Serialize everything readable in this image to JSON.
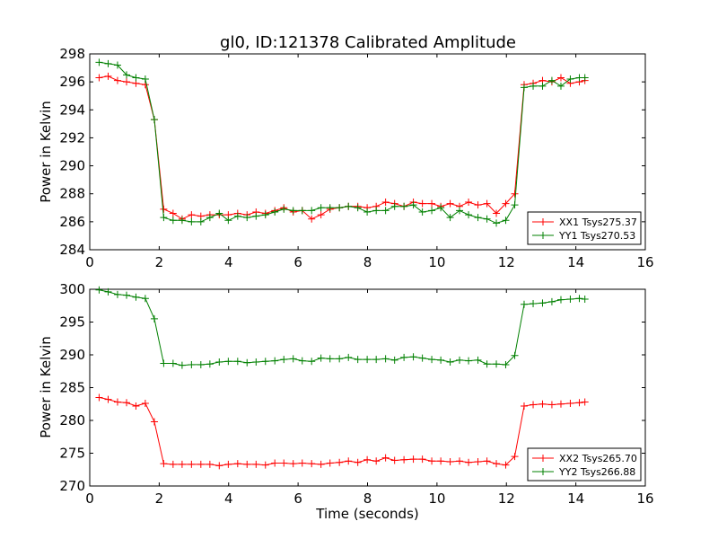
{
  "chart_data": [
    {
      "type": "line",
      "title": "gl0, ID:121378 Calibrated Amplitude",
      "xlabel": "",
      "ylabel": "Power in Kelvin",
      "xlim": [
        0,
        16
      ],
      "ylim": [
        284,
        298
      ],
      "xticks": [
        0,
        2,
        4,
        6,
        8,
        10,
        12,
        14,
        16
      ],
      "yticks": [
        284,
        286,
        288,
        290,
        292,
        294,
        296,
        298
      ],
      "grid": false,
      "legend_position": "lower-right",
      "x": [
        0.27,
        0.53,
        0.8,
        1.06,
        1.33,
        1.6,
        1.86,
        2.13,
        2.4,
        2.66,
        2.93,
        3.2,
        3.46,
        3.73,
        3.99,
        4.26,
        4.53,
        4.79,
        5.06,
        5.33,
        5.59,
        5.86,
        6.12,
        6.39,
        6.66,
        6.92,
        7.19,
        7.45,
        7.72,
        7.99,
        8.25,
        8.52,
        8.78,
        9.05,
        9.32,
        9.58,
        9.85,
        10.11,
        10.38,
        10.65,
        10.91,
        11.18,
        11.44,
        11.71,
        11.98,
        12.24,
        12.51,
        12.77,
        13.04,
        13.31,
        13.57,
        13.84,
        14.1,
        14.26
      ],
      "series": [
        {
          "name": "XX1 Tsys275.37",
          "color": "#ff0000",
          "values": [
            296.3,
            296.4,
            296.1,
            296.0,
            295.9,
            295.8,
            293.3,
            286.9,
            286.6,
            286.2,
            286.5,
            286.4,
            286.5,
            286.5,
            286.5,
            286.6,
            286.5,
            286.7,
            286.6,
            286.8,
            287.0,
            286.7,
            286.8,
            286.2,
            286.5,
            286.9,
            287.0,
            287.1,
            287.1,
            287.0,
            287.1,
            287.4,
            287.3,
            287.1,
            287.4,
            287.3,
            287.3,
            287.1,
            287.3,
            287.1,
            287.4,
            287.2,
            287.3,
            286.6,
            287.3,
            288.0,
            295.8,
            295.9,
            296.1,
            296.0,
            296.3,
            295.9,
            296.0,
            296.1
          ]
        },
        {
          "name": "YY1 Tsys270.53",
          "color": "#008000",
          "values": [
            297.4,
            297.3,
            297.2,
            296.5,
            296.3,
            296.2,
            293.3,
            286.3,
            286.1,
            286.1,
            286.0,
            286.0,
            286.3,
            286.6,
            286.1,
            286.4,
            286.3,
            286.4,
            286.5,
            286.7,
            286.9,
            286.8,
            286.8,
            286.8,
            287.0,
            287.0,
            287.0,
            287.1,
            287.0,
            286.7,
            286.8,
            286.8,
            287.1,
            287.1,
            287.2,
            286.7,
            286.8,
            287.0,
            286.3,
            286.8,
            286.5,
            286.3,
            286.2,
            285.9,
            286.1,
            287.2,
            295.6,
            295.7,
            295.7,
            296.1,
            295.7,
            296.2,
            296.3,
            296.3
          ]
        }
      ]
    },
    {
      "type": "line",
      "title": "",
      "xlabel": "Time (seconds)",
      "ylabel": "Power in Kelvin",
      "xlim": [
        0,
        16
      ],
      "ylim": [
        270,
        300
      ],
      "xticks": [
        0,
        2,
        4,
        6,
        8,
        10,
        12,
        14,
        16
      ],
      "yticks": [
        270,
        275,
        280,
        285,
        290,
        295,
        300
      ],
      "grid": false,
      "legend_position": "lower-right",
      "x": [
        0.27,
        0.53,
        0.8,
        1.06,
        1.33,
        1.6,
        1.86,
        2.13,
        2.4,
        2.66,
        2.93,
        3.2,
        3.46,
        3.73,
        3.99,
        4.26,
        4.53,
        4.79,
        5.06,
        5.33,
        5.59,
        5.86,
        6.12,
        6.39,
        6.66,
        6.92,
        7.19,
        7.45,
        7.72,
        7.99,
        8.25,
        8.52,
        8.78,
        9.05,
        9.32,
        9.58,
        9.85,
        10.11,
        10.38,
        10.65,
        10.91,
        11.18,
        11.44,
        11.71,
        11.98,
        12.24,
        12.51,
        12.77,
        13.04,
        13.31,
        13.57,
        13.84,
        14.1,
        14.26
      ],
      "series": [
        {
          "name": "XX2 Tsys265.70",
          "color": "#ff0000",
          "values": [
            283.5,
            283.2,
            282.8,
            282.7,
            282.2,
            282.6,
            279.8,
            273.4,
            273.3,
            273.3,
            273.3,
            273.3,
            273.3,
            273.1,
            273.3,
            273.4,
            273.3,
            273.3,
            273.2,
            273.5,
            273.5,
            273.4,
            273.5,
            273.4,
            273.3,
            273.5,
            273.6,
            273.8,
            273.6,
            274.0,
            273.8,
            274.3,
            273.9,
            274.0,
            274.1,
            274.1,
            273.8,
            273.8,
            273.7,
            273.8,
            273.6,
            273.7,
            273.8,
            273.4,
            273.2,
            274.5,
            282.2,
            282.4,
            282.5,
            282.4,
            282.5,
            282.6,
            282.7,
            282.8
          ]
        },
        {
          "name": "YY2 Tsys266.88",
          "color": "#008000",
          "values": [
            299.9,
            299.6,
            299.2,
            299.1,
            298.8,
            298.6,
            295.5,
            288.7,
            288.7,
            288.4,
            288.5,
            288.5,
            288.6,
            288.9,
            289.0,
            289.0,
            288.8,
            288.9,
            289.0,
            289.1,
            289.3,
            289.4,
            289.1,
            289.0,
            289.5,
            289.4,
            289.4,
            289.6,
            289.3,
            289.3,
            289.3,
            289.4,
            289.2,
            289.6,
            289.7,
            289.5,
            289.3,
            289.2,
            288.9,
            289.2,
            289.1,
            289.2,
            288.6,
            288.6,
            288.5,
            289.9,
            297.7,
            297.8,
            297.9,
            298.1,
            298.4,
            298.5,
            298.6,
            298.5
          ]
        }
      ]
    }
  ]
}
